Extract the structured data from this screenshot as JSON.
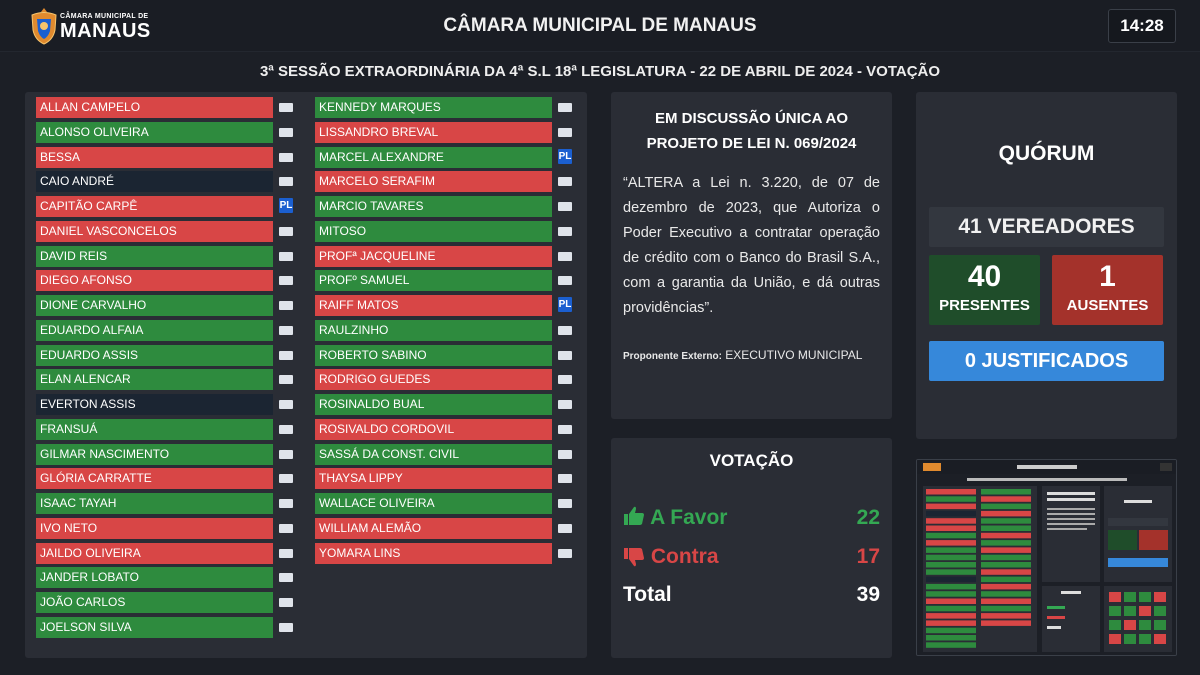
{
  "header": {
    "logo_line1": "CÂMARA MUNICIPAL DE",
    "logo_line2": "MANAUS",
    "title": "CÂMARA MUNICIPAL DE MANAUS",
    "time": "14:28"
  },
  "session_title": "3ª SESSÃO EXTRAORDINÁRIA DA 4ª S.L 18ª LEGISLATURA - 22 DE ABRIL DE 2024 - VOTAÇÃO",
  "colors": {
    "favor": "#2e8b3e",
    "contra": "#d84646",
    "none": "#1b2532",
    "justificados": "#3688da"
  },
  "council": {
    "column1": [
      {
        "name": "ALLAN CAMPELO",
        "vote": "contra",
        "party": ""
      },
      {
        "name": "ALONSO OLIVEIRA",
        "vote": "favor",
        "party": ""
      },
      {
        "name": "BESSA",
        "vote": "contra",
        "party": ""
      },
      {
        "name": "CAIO ANDRÉ",
        "vote": "none",
        "party": ""
      },
      {
        "name": "CAPITÃO CARPÊ",
        "vote": "contra",
        "party": "PL"
      },
      {
        "name": "DANIEL VASCONCELOS",
        "vote": "contra",
        "party": ""
      },
      {
        "name": "DAVID REIS",
        "vote": "favor",
        "party": ""
      },
      {
        "name": "DIEGO AFONSO",
        "vote": "contra",
        "party": ""
      },
      {
        "name": "DIONE CARVALHO",
        "vote": "favor",
        "party": ""
      },
      {
        "name": "EDUARDO ALFAIA",
        "vote": "favor",
        "party": ""
      },
      {
        "name": "EDUARDO ASSIS",
        "vote": "favor",
        "party": ""
      },
      {
        "name": "ELAN ALENCAR",
        "vote": "favor",
        "party": ""
      },
      {
        "name": "EVERTON ASSIS",
        "vote": "none",
        "party": ""
      },
      {
        "name": "FRANSUÁ",
        "vote": "favor",
        "party": ""
      },
      {
        "name": "GILMAR NASCIMENTO",
        "vote": "favor",
        "party": ""
      },
      {
        "name": "GLÓRIA CARRATTE",
        "vote": "contra",
        "party": ""
      },
      {
        "name": "ISAAC TAYAH",
        "vote": "favor",
        "party": ""
      },
      {
        "name": "IVO NETO",
        "vote": "contra",
        "party": ""
      },
      {
        "name": "JAILDO OLIVEIRA",
        "vote": "contra",
        "party": ""
      },
      {
        "name": "JANDER LOBATO",
        "vote": "favor",
        "party": ""
      },
      {
        "name": "JOÃO CARLOS",
        "vote": "favor",
        "party": ""
      },
      {
        "name": "JOELSON SILVA",
        "vote": "favor",
        "party": ""
      }
    ],
    "column2": [
      {
        "name": "KENNEDY MARQUES",
        "vote": "favor",
        "party": ""
      },
      {
        "name": "LISSANDRO BREVAL",
        "vote": "contra",
        "party": ""
      },
      {
        "name": "MARCEL ALEXANDRE",
        "vote": "favor",
        "party": "PL"
      },
      {
        "name": "MARCELO SERAFIM",
        "vote": "contra",
        "party": ""
      },
      {
        "name": "MARCIO TAVARES",
        "vote": "favor",
        "party": ""
      },
      {
        "name": "MITOSO",
        "vote": "favor",
        "party": ""
      },
      {
        "name": "PROFª JACQUELINE",
        "vote": "contra",
        "party": ""
      },
      {
        "name": "PROFº SAMUEL",
        "vote": "favor",
        "party": ""
      },
      {
        "name": "RAIFF MATOS",
        "vote": "contra",
        "party": "PL"
      },
      {
        "name": "RAULZINHO",
        "vote": "favor",
        "party": ""
      },
      {
        "name": "ROBERTO SABINO",
        "vote": "favor",
        "party": ""
      },
      {
        "name": "RODRIGO GUEDES",
        "vote": "contra",
        "party": ""
      },
      {
        "name": "ROSINALDO BUAL",
        "vote": "favor",
        "party": ""
      },
      {
        "name": "ROSIVALDO CORDOVIL",
        "vote": "contra",
        "party": ""
      },
      {
        "name": "SASSÁ DA CONST. CIVIL",
        "vote": "favor",
        "party": ""
      },
      {
        "name": "THAYSA LIPPY",
        "vote": "contra",
        "party": ""
      },
      {
        "name": "WALLACE OLIVEIRA",
        "vote": "favor",
        "party": ""
      },
      {
        "name": "WILLIAM ALEMÃO",
        "vote": "contra",
        "party": ""
      },
      {
        "name": "YOMARA LINS",
        "vote": "contra",
        "party": ""
      }
    ]
  },
  "project": {
    "title": "EM DISCUSSÃO ÚNICA AO PROJETO DE LEI N. 069/2024",
    "description": "“ALTERA a Lei n. 3.220, de 07 de dezembro de 2023, que Autoriza o Poder Executivo a contratar operação de crédito com o Banco do Brasil S.A., com a garantia da União, e dá outras providências”.",
    "proponent_label": "Proponente Externo:",
    "proponent_value": "EXECUTIVO MUNICIPAL"
  },
  "votacao": {
    "title": "VOTAÇÃO",
    "favor_label": "A Favor",
    "favor_value": "22",
    "contra_label": "Contra",
    "contra_value": "17",
    "total_label": "Total",
    "total_value": "39",
    "favor_icon": "thumbs-up-icon",
    "contra_icon": "thumbs-down-icon"
  },
  "quorum": {
    "title": "QUÓRUM",
    "total": "41 VEREADORES",
    "presentes_value": "40",
    "presentes_label": "PRESENTES",
    "ausentes_value": "1",
    "ausentes_label": "AUSENTES",
    "justificados": "0 JUSTIFICADOS"
  }
}
